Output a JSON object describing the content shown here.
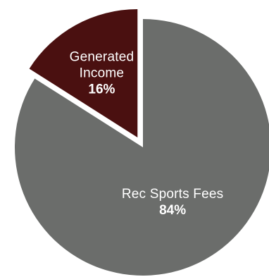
{
  "chart_data": {
    "type": "pie",
    "slices": [
      {
        "name_lines": [
          "Rec Sports Fees"
        ],
        "value": 84,
        "value_label": "84%",
        "color": "#6b6d6b",
        "exploded": false
      },
      {
        "name_lines": [
          "Generated",
          "Income"
        ],
        "value": 16,
        "value_label": "16%",
        "color": "#4a1010",
        "exploded": true
      }
    ]
  }
}
